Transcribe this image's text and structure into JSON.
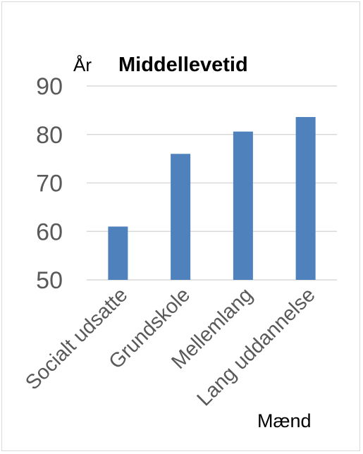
{
  "chart_data": {
    "type": "bar",
    "title": "Middellevetid",
    "ylabel": "År",
    "xlabel": "Mænd",
    "categories": [
      "Socialt udsatte",
      "Grundskole",
      "Mellemlang",
      "Lang uddannelse"
    ],
    "values": [
      61,
      76,
      80.6,
      83.6
    ],
    "ylim": [
      50,
      90
    ],
    "yticks": [
      50,
      60,
      70,
      80,
      90
    ],
    "grid": true,
    "legend": "none",
    "colors": {
      "bar": "#4f81bd",
      "grid": "#d9d9d9"
    }
  }
}
